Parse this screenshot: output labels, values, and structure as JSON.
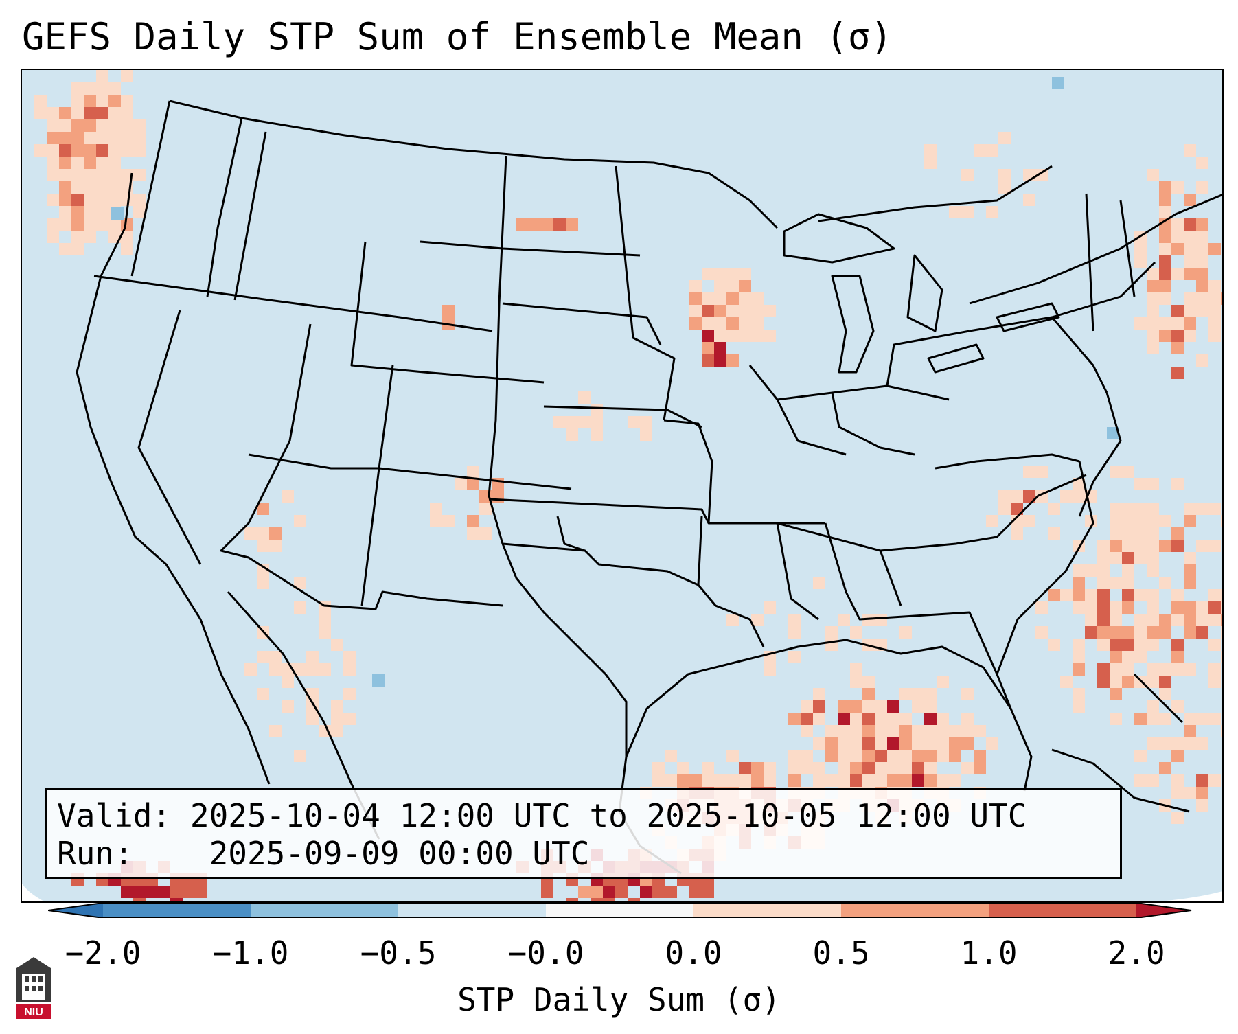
{
  "title": "GEFS Daily STP Sum of Ensemble Mean (σ)",
  "info": {
    "valid_label": "Valid:",
    "valid_value": "2025-10-04 12:00 UTC to 2025-10-05 12:00 UTC",
    "run_label": "Run:",
    "run_value": "2025-09-09 00:00 UTC"
  },
  "colorbar": {
    "label": "STP Daily Sum (σ)",
    "ticks": [
      "−2.0",
      "−1.0",
      "−0.5",
      "−0.0",
      "0.0",
      "0.5",
      "1.0",
      "2.0"
    ],
    "bin_colors": [
      "#4a8fc5",
      "#8ec1de",
      "#cfe4f0",
      "#f7f7f7",
      "#fbdbc8",
      "#f3a17f",
      "#d6604d"
    ],
    "extend_min_color": "#2f74b3",
    "extend_max_color": "#b2182b"
  },
  "map": {
    "background_color": "#d1e5f0",
    "region": "Contiguous United States",
    "hotspots": [
      {
        "name": "Pacific Northwest offshore",
        "level": 1.2
      },
      {
        "name": "Northern Wisconsin",
        "level": 1.2
      },
      {
        "name": "Gulf of Mexico",
        "level": 1.5
      },
      {
        "name": "Western Atlantic",
        "level": 1.0
      },
      {
        "name": "Gulf of Maine",
        "level": 1.4
      }
    ]
  },
  "logo": {
    "text": "NIU"
  }
}
